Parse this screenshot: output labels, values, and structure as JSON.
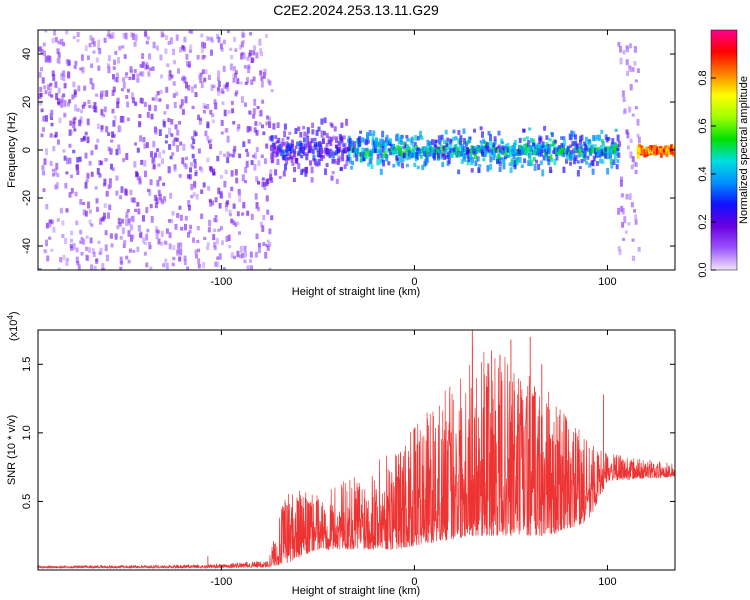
{
  "title": "C2E2.2024.253.13.11.G29",
  "chart_data": [
    {
      "type": "heatmap",
      "xlabel": "Height of straight line (km)",
      "ylabel": "Frequency (Hz)",
      "xlim": [
        -195,
        135
      ],
      "ylim": [
        -50,
        50
      ],
      "xticks": [
        -100,
        0,
        100
      ],
      "yticks": [
        -40,
        -20,
        0,
        20,
        40
      ],
      "colorbar": {
        "label": "Normalized spectral amplitude",
        "range": [
          0,
          1
        ],
        "ticks": [
          "0.0",
          "0.2",
          "0.4",
          "0.6",
          "0.8"
        ],
        "tick_values": [
          0,
          0.2,
          0.4,
          0.6,
          0.8
        ],
        "colors": [
          "#f2e6ff",
          "#9a55ff",
          "#6a00e0",
          "#1010ff",
          "#0090ff",
          "#00e0e0",
          "#00e000",
          "#a0ff00",
          "#ffff00",
          "#ff8000",
          "#ff0000",
          "#ff0090"
        ]
      },
      "regions": [
        {
          "x": [
            -195,
            -75
          ],
          "freq_spread": 50,
          "amplitude": [
            0.05,
            0.25
          ],
          "density": "high"
        },
        {
          "x": [
            -75,
            -35
          ],
          "freq_spread": 15,
          "amplitude": [
            0.1,
            0.35
          ]
        },
        {
          "x": [
            -35,
            105
          ],
          "freq_spread": 10,
          "amplitude": [
            0.2,
            0.6
          ]
        },
        {
          "x": [
            105,
            115
          ],
          "freq_spread": 45,
          "amplitude": [
            0.05,
            0.2
          ]
        },
        {
          "x": [
            115,
            135
          ],
          "freq_spread": 2,
          "amplitude": [
            0.7,
            1.0
          ]
        }
      ]
    },
    {
      "type": "line",
      "xlabel": "Height of straight line (km)",
      "ylabel": "SNR (10 * v/v)",
      "scale_label": "(x10",
      "scale_exp": "4",
      "xlim": [
        -195,
        135
      ],
      "ylim": [
        0,
        17500
      ],
      "xticks": [
        -100,
        0,
        100
      ],
      "yticks": [
        5000,
        10000,
        15000
      ],
      "ytick_labels": [
        "0.5",
        "1.0",
        "1.5"
      ],
      "color": "#ee3333",
      "envelope": [
        {
          "x": -195,
          "base": 150,
          "peak": 300
        },
        {
          "x": -110,
          "base": 150,
          "peak": 400
        },
        {
          "x": -76,
          "base": 200,
          "peak": 700
        },
        {
          "x": -66,
          "base": 500,
          "peak": 6000
        },
        {
          "x": -50,
          "base": 1500,
          "peak": 5500
        },
        {
          "x": -30,
          "base": 1500,
          "peak": 7000
        },
        {
          "x": -10,
          "base": 1500,
          "peak": 9000
        },
        {
          "x": 10,
          "base": 2000,
          "peak": 12000
        },
        {
          "x": 30,
          "base": 2500,
          "peak": 16500
        },
        {
          "x": 50,
          "base": 2500,
          "peak": 15500
        },
        {
          "x": 70,
          "base": 2500,
          "peak": 13000
        },
        {
          "x": 90,
          "base": 3500,
          "peak": 9500
        },
        {
          "x": 100,
          "base": 6500,
          "peak": 8500
        },
        {
          "x": 135,
          "base": 6800,
          "peak": 7800
        }
      ],
      "spikes": [
        {
          "x": -107,
          "value": 1000
        },
        {
          "x": 30,
          "value": 17500
        },
        {
          "x": 40,
          "value": 16000
        },
        {
          "x": 50,
          "value": 16800
        },
        {
          "x": 60,
          "value": 17000
        },
        {
          "x": 66,
          "value": 15000
        },
        {
          "x": 98,
          "value": 12800
        }
      ]
    }
  ]
}
